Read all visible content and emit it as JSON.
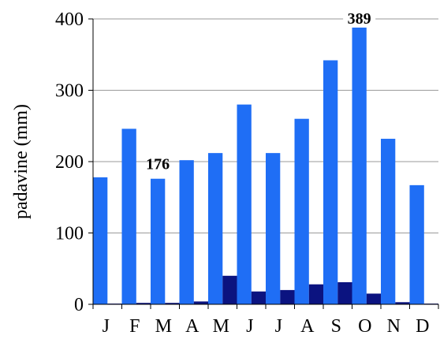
{
  "chart_data": {
    "type": "bar",
    "categories": [
      "J",
      "F",
      "M",
      "A",
      "M",
      "J",
      "J",
      "A",
      "S",
      "O",
      "N",
      "D"
    ],
    "series": [
      {
        "color": "#1f6ef5",
        "values": [
          178,
          246,
          176,
          202,
          212,
          280,
          212,
          260,
          342,
          389,
          232,
          167
        ]
      },
      {
        "color": "#0b1380",
        "values": [
          1,
          2,
          2,
          4,
          40,
          18,
          20,
          28,
          31,
          15,
          3,
          1
        ]
      }
    ],
    "ylabel": "padavine (mm)",
    "xlabel": "",
    "ylim": [
      0,
      400
    ],
    "yticks": [
      0,
      100,
      200,
      300,
      400
    ],
    "grid": true,
    "data_labels": [
      {
        "category_index": 2,
        "series_index": 0,
        "text": "176"
      },
      {
        "category_index": 9,
        "series_index": 0,
        "text": "389"
      }
    ]
  }
}
